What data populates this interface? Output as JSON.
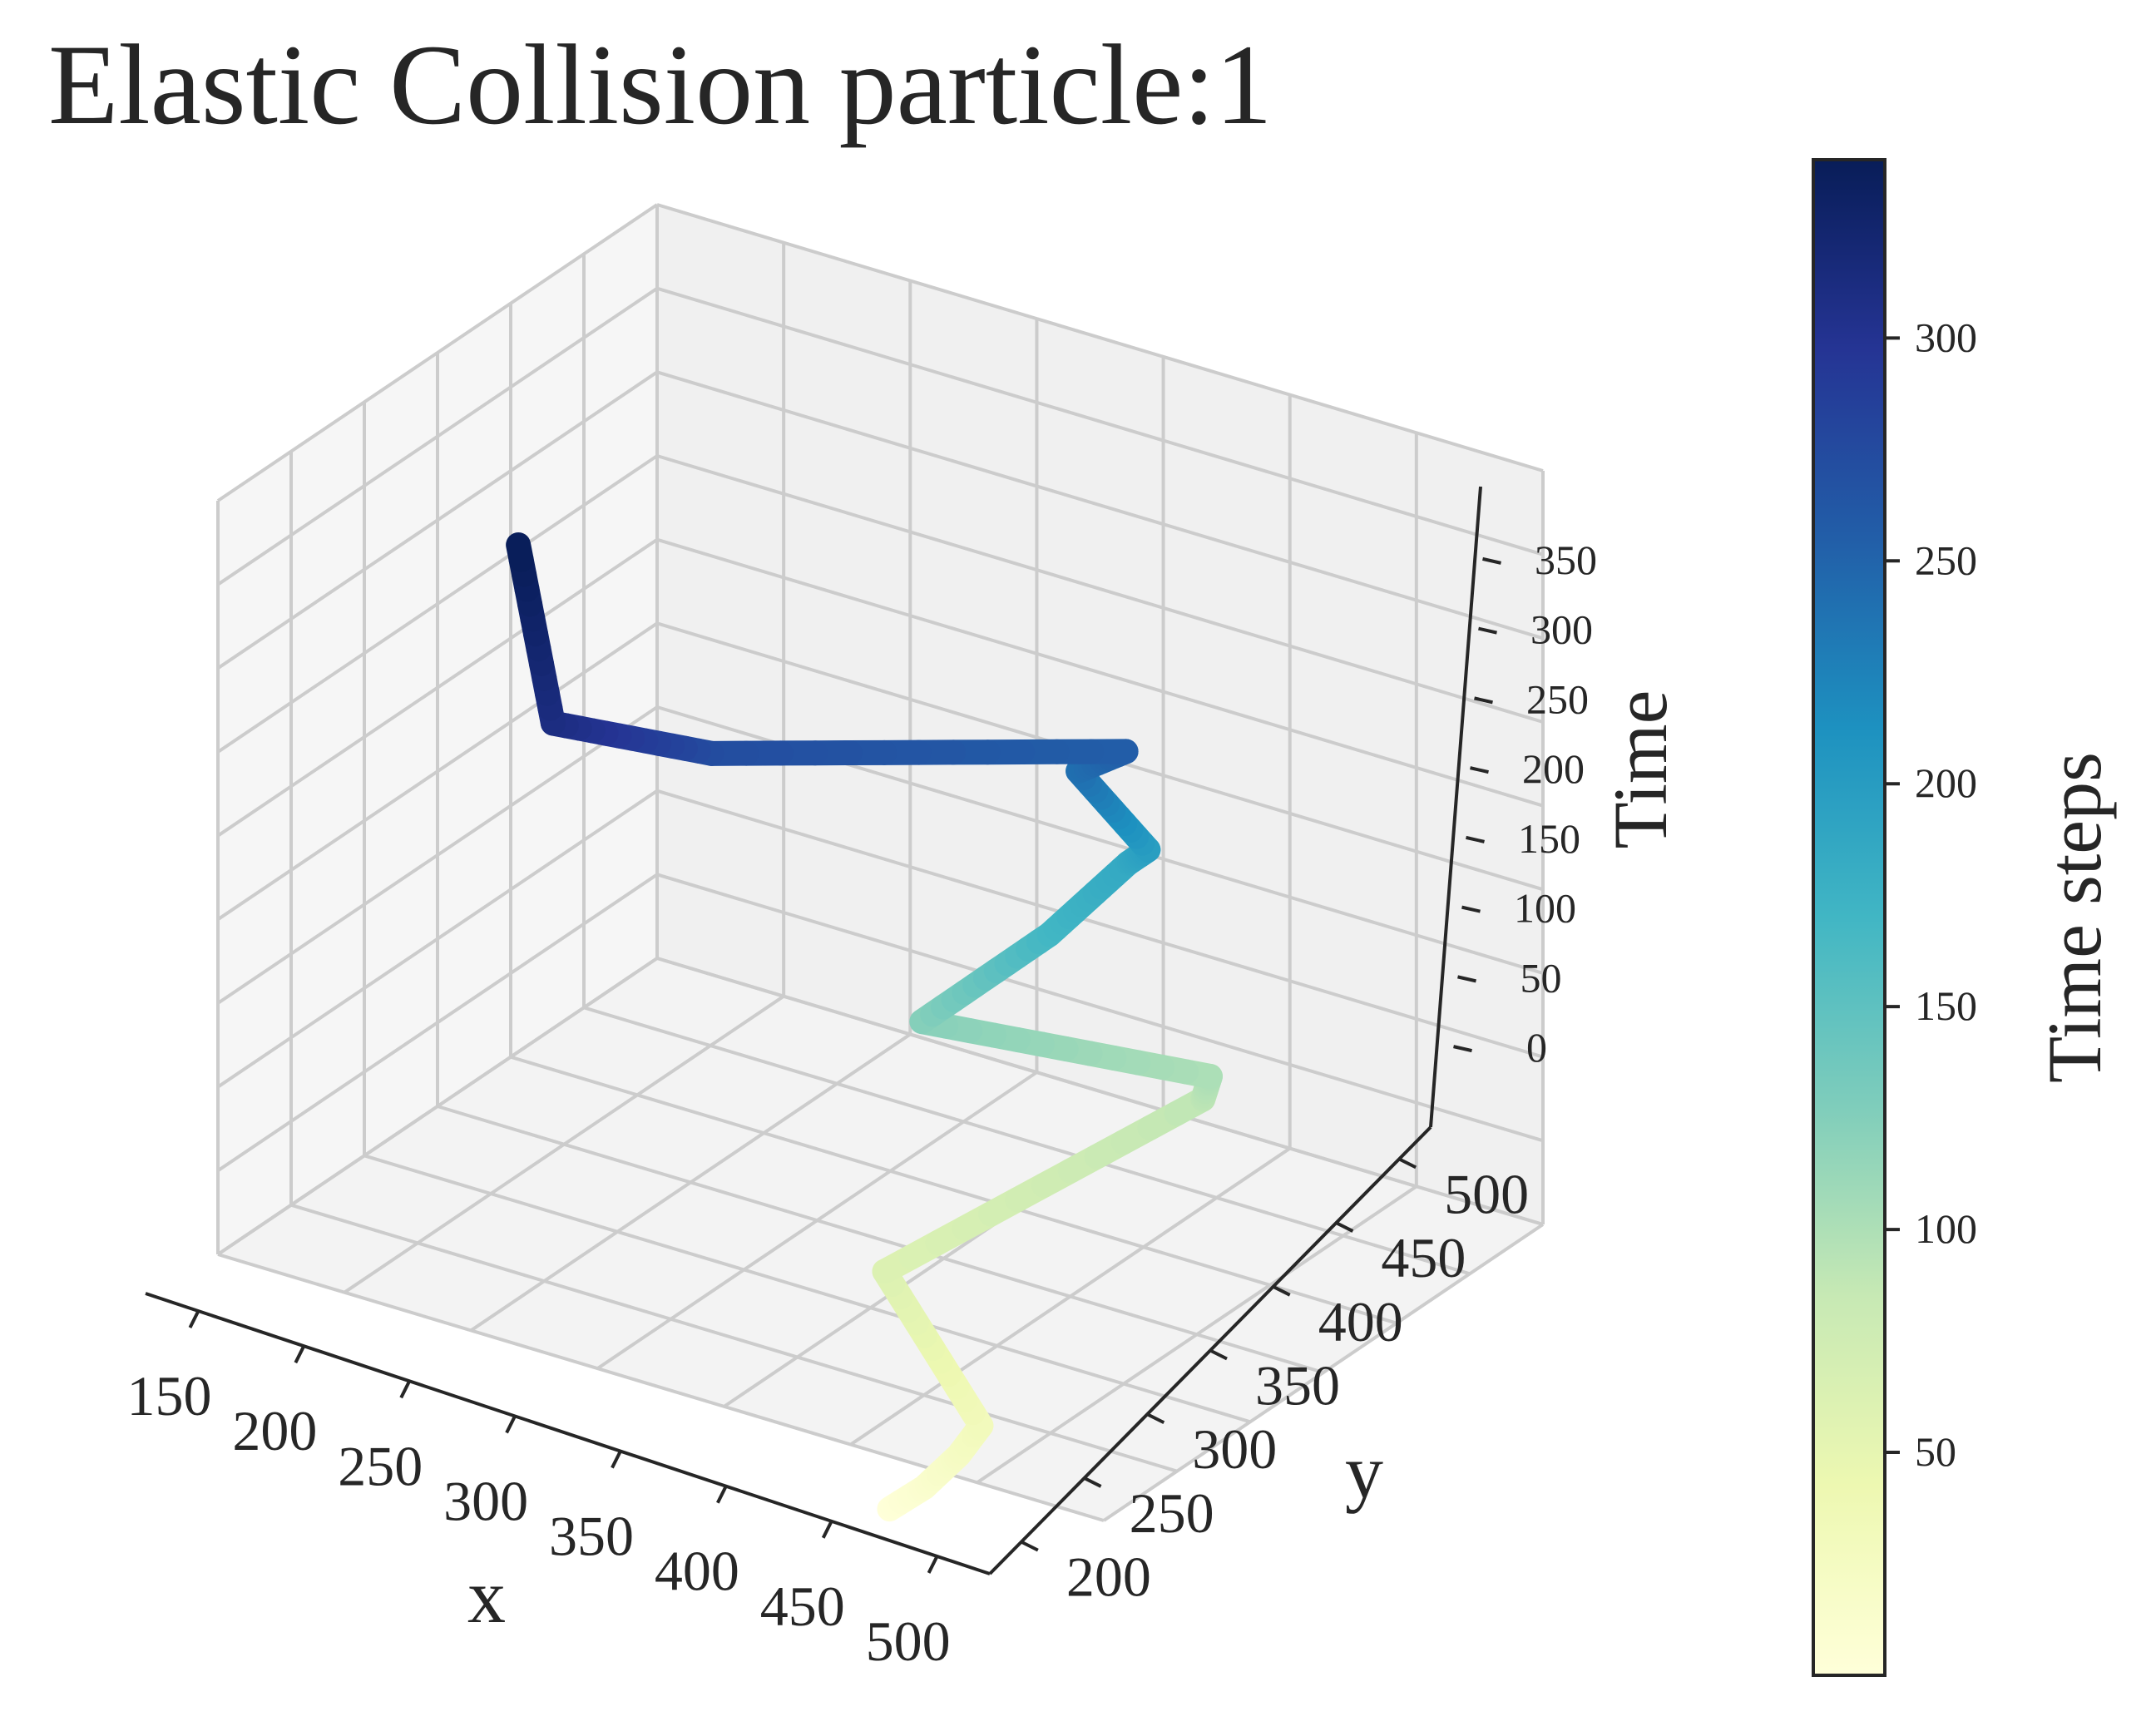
{
  "chart_data": {
    "type": "line",
    "projection": "3d",
    "title": "Elastic Collision particle:1",
    "xlabel": "x",
    "ylabel": "y",
    "zlabel": "Time",
    "xlim": [
      150,
      500
    ],
    "ylim": [
      200,
      500
    ],
    "zlim": [
      0,
      350
    ],
    "xticks": [
      "150",
      "200",
      "250",
      "300",
      "350",
      "400",
      "450",
      "500"
    ],
    "yticks": [
      "200",
      "250",
      "300",
      "350",
      "400",
      "450",
      "500"
    ],
    "zticks": [
      "0",
      "50",
      "100",
      "150",
      "200",
      "250",
      "300",
      "350"
    ],
    "grid": true,
    "colormap": "YlGnBu",
    "colorbar": {
      "label": "Time steps",
      "range": [
        0,
        340
      ],
      "ticks": [
        "50",
        "100",
        "150",
        "200",
        "250",
        "300"
      ],
      "placement": "right"
    },
    "series": [
      {
        "x": [
          417,
          425,
          430,
          430,
          363,
          402,
          402,
          317,
          350,
          355,
          363,
          344,
          360,
          260,
          232,
          172
        ],
        "y": [
          200,
          210,
          225,
          240,
          290,
          440,
          445,
          395,
          425,
          470,
          470,
          455,
          460,
          350,
          290,
          370
        ],
        "t": [
          0,
          10,
          22,
          30,
          60,
          90,
          100,
          122,
          168,
          185,
          196,
          240,
          255,
          272,
          310,
          340
        ]
      }
    ]
  },
  "colors": {
    "pane": "#f2f2f2",
    "grid": "#cccccc",
    "axis": "#262626",
    "colorbar_stops": [
      "#ffffd9",
      "#edf8b1",
      "#c7e9b4",
      "#7fcdbb",
      "#41b6c4",
      "#1d91c0",
      "#225ea8",
      "#253494",
      "#081d58"
    ]
  }
}
